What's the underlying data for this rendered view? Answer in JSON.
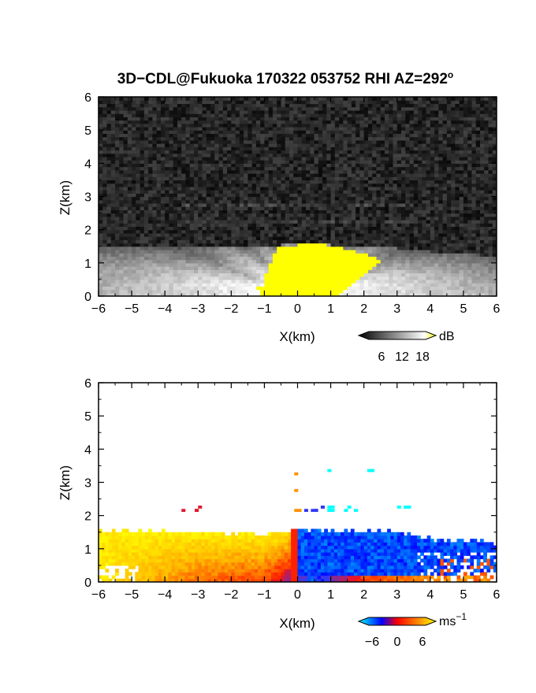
{
  "title": "3D−CDL@Fukuoka 170322 053752 RHI AZ=292",
  "title_degree": "o",
  "chart_data": [
    {
      "type": "heatmap",
      "name": "snr-panel",
      "xlabel": "X(km)",
      "ylabel": "Z(km)",
      "xlim": [
        -6,
        6
      ],
      "ylim": [
        0,
        6
      ],
      "xticks": [
        "−6",
        "−5",
        "−4",
        "−3",
        "−2",
        "−1",
        "0",
        "1",
        "2",
        "3",
        "4",
        "5",
        "6"
      ],
      "yticks": [
        "0",
        "1",
        "2",
        "3",
        "4",
        "5",
        "6"
      ],
      "grid": false,
      "colorscale": "grayscale-to-yellow",
      "colorbar": {
        "unit": "dB",
        "ticks": [
          "6",
          "12",
          "18"
        ],
        "range": [
          0,
          20
        ],
        "colors": [
          "#000000",
          "#ffffff",
          "#ffff00"
        ]
      },
      "features": {
        "background_noise_db": 2,
        "aerosol_layer_top_km": [
          [
            -6,
            1.55
          ],
          [
            -4,
            1.5
          ],
          [
            -2,
            1.45
          ],
          [
            -1,
            1.5
          ],
          [
            0,
            1.6
          ],
          [
            1,
            1.55
          ],
          [
            2,
            1.5
          ],
          [
            3,
            1.45
          ],
          [
            4,
            1.35
          ],
          [
            5,
            1.3
          ],
          [
            6,
            1.2
          ]
        ],
        "high_snr_region_km": [
          [
            -1.2,
            0
          ],
          [
            -0.6,
            1.5
          ],
          [
            0.6,
            1.6
          ],
          [
            1.6,
            1.4
          ],
          [
            2.6,
            1.1
          ],
          [
            1.2,
            0
          ]
        ],
        "faint_layers_z_km": [
          2.25,
          2.75
        ]
      }
    },
    {
      "type": "heatmap",
      "name": "doppler-velocity-panel",
      "xlabel": "X(km)",
      "ylabel": "Z(km)",
      "xlim": [
        -6,
        6
      ],
      "ylim": [
        0,
        6
      ],
      "xticks": [
        "−6",
        "−5",
        "−4",
        "−3",
        "−2",
        "−1",
        "0",
        "1",
        "2",
        "3",
        "4",
        "5",
        "6"
      ],
      "yticks": [
        "0",
        "1",
        "2",
        "3",
        "4",
        "5",
        "6"
      ],
      "grid": false,
      "colorscale": "cyan-blue-red-yellow",
      "colorbar": {
        "unit": "ms",
        "unit_exponent": "−1",
        "ticks": [
          "−6",
          "0",
          "6"
        ],
        "range": [
          -8,
          8
        ],
        "colors": [
          "#00ffff",
          "#0000ff",
          "#ff0000",
          "#ff8000",
          "#ffff00"
        ]
      },
      "features": {
        "layer_top_km": [
          [
            -6,
            1.55
          ],
          [
            -3,
            1.5
          ],
          [
            -1,
            1.45
          ],
          [
            0,
            1.6
          ],
          [
            1,
            1.55
          ],
          [
            3,
            1.5
          ],
          [
            4,
            1.3
          ],
          [
            5,
            1.25
          ],
          [
            6,
            1.2
          ]
        ],
        "velocity_left_of_radar_ms": 4,
        "velocity_right_of_radar_ms": -5,
        "near_surface_velocity_ms": [
          [
            -6,
            6
          ],
          [
            -3,
            2
          ],
          [
            -1,
            1
          ],
          [
            0.5,
            -5
          ],
          [
            2,
            1
          ],
          [
            3,
            2
          ],
          [
            4.5,
            3
          ],
          [
            6,
            3
          ]
        ]
      }
    }
  ]
}
